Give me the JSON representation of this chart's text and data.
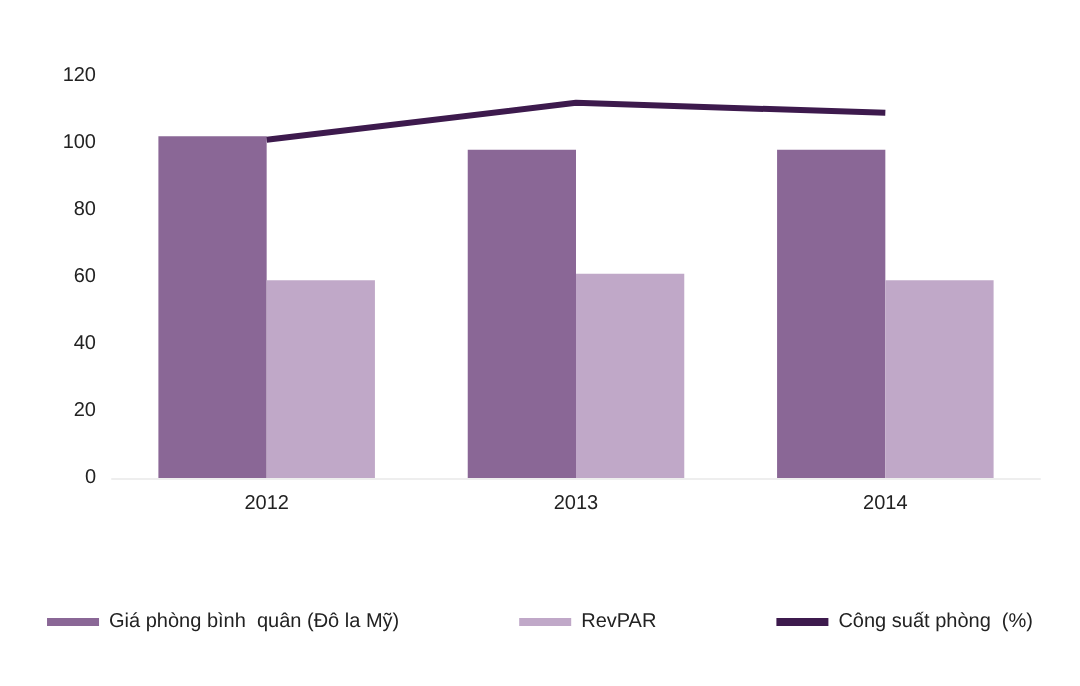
{
  "chart_data": {
    "type": "bar",
    "categories": [
      "2012",
      "2013",
      "2014"
    ],
    "series": [
      {
        "name": "Giá phòng bình  quân (Đô la Mỹ)",
        "color": "#8a6796",
        "values": [
          102,
          98,
          98
        ]
      },
      {
        "name": "RevPAR",
        "color": "#c0a8c8",
        "values": [
          59,
          61,
          59
        ]
      },
      {
        "name": "Công suất phòng  (%)",
        "type": "line",
        "color": "#3d1a4d",
        "values": [
          101,
          112,
          109
        ]
      }
    ],
    "ylim": [
      0,
      120
    ],
    "yticks": [
      0,
      20,
      40,
      60,
      80,
      100,
      120
    ],
    "grid": false,
    "legend": "bottom",
    "marker": "none"
  }
}
